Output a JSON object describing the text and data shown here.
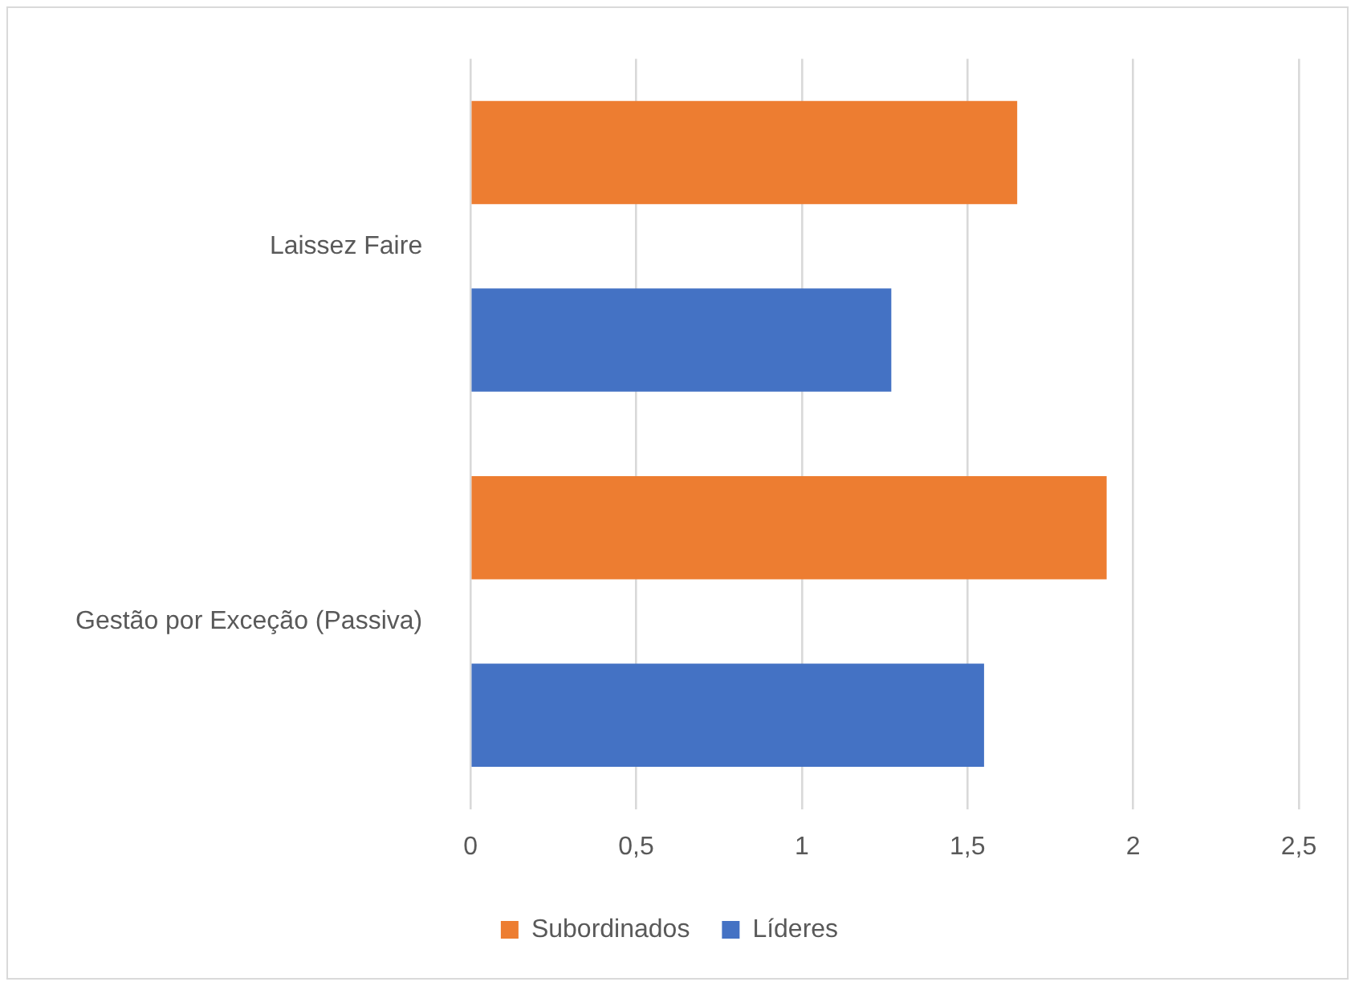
{
  "chart_data": {
    "type": "bar",
    "orientation": "horizontal",
    "categories": [
      "Laissez Faire",
      "Gestão por Exceção (Passiva)"
    ],
    "series": [
      {
        "name": "Subordinados",
        "color": "#ed7d31",
        "values": [
          1.65,
          1.92
        ]
      },
      {
        "name": "Líderes",
        "color": "#4472c4",
        "values": [
          1.27,
          1.55
        ]
      }
    ],
    "xlim": [
      0,
      2.5
    ],
    "xticks": [
      0,
      {
        "value": 0.5,
        "label": "0,5"
      },
      1,
      {
        "value": 1.5,
        "label": "1,5"
      },
      2,
      {
        "value": 2.5,
        "label": "2,5"
      }
    ],
    "grid": "x",
    "legend": "bottom"
  }
}
